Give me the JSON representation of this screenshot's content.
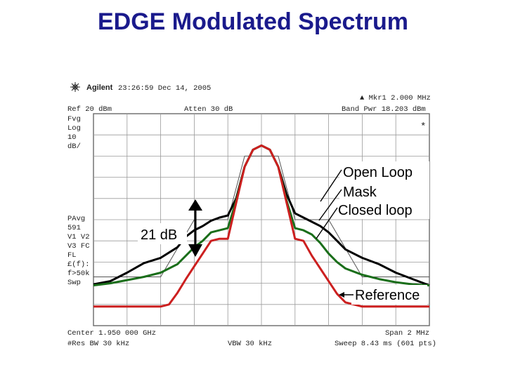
{
  "slide": {
    "title": "EDGE Modulated Spectrum"
  },
  "analyzer": {
    "brand": "Agilent",
    "timestamp": "23:26:59  Dec 14, 2005",
    "marker": "▲ Mkr1  2.000 MHz",
    "band_power": "Band Pwr  18.203 dBm",
    "ref_level": "Ref 20 dBm",
    "atten": "Atten 30 dB",
    "star": "*",
    "left_labels": [
      "Fvg",
      "Log",
      "10",
      "dB/"
    ],
    "left_labels_2": [
      "PAvg",
      "591",
      "V1  V2",
      "V3  FC",
      "  FL",
      "£(f):",
      "f>50k",
      "Swp"
    ],
    "center": "Center 1.950 000 GHz",
    "res_bw": "#Res BW 30 kHz",
    "vbw": "VBW 30 kHz",
    "span": "Span 2 MHz",
    "sweep": "Sweep 8.43 ms (601 pts)"
  },
  "annotations": {
    "open_loop": "Open Loop",
    "mask": "Mask",
    "closed_loop": "Closed loop",
    "delta": "21 dB",
    "reference": "Reference"
  },
  "colors": {
    "title": "#1a1a8c",
    "open_loop": "#000000",
    "closed_loop": "#1a6e1a",
    "reference": "#cc1f1f",
    "mask": "#555555",
    "grid": "#9a9a9a"
  },
  "chart_data": {
    "type": "line",
    "xlabel": "",
    "ylabel": "",
    "xlim": [
      -1,
      1
    ],
    "ylim": [
      -80,
      20
    ],
    "x_units": "MHz offset from center",
    "y_units": "dBm",
    "series": [
      {
        "name": "Open Loop",
        "color": "#000000",
        "points": [
          [
            -1.0,
            -60.5
          ],
          [
            -0.9,
            -59
          ],
          [
            -0.8,
            -55
          ],
          [
            -0.7,
            -50.5
          ],
          [
            -0.6,
            -48
          ],
          [
            -0.5,
            -43
          ],
          [
            -0.45,
            -38
          ],
          [
            -0.4,
            -35
          ],
          [
            -0.35,
            -33
          ],
          [
            -0.3,
            -30.5
          ],
          [
            -0.25,
            -29
          ],
          [
            -0.2,
            -28
          ],
          [
            -0.15,
            -20
          ],
          [
            -0.1,
            -5
          ],
          [
            -0.05,
            3
          ],
          [
            0.0,
            5
          ],
          [
            0.05,
            3
          ],
          [
            0.1,
            -5
          ],
          [
            0.15,
            -18
          ],
          [
            0.2,
            -27
          ],
          [
            0.25,
            -29
          ],
          [
            0.3,
            -31
          ],
          [
            0.35,
            -33
          ],
          [
            0.4,
            -36
          ],
          [
            0.45,
            -40
          ],
          [
            0.5,
            -44
          ],
          [
            0.6,
            -48
          ],
          [
            0.7,
            -51
          ],
          [
            0.8,
            -55
          ],
          [
            0.9,
            -58
          ],
          [
            1.0,
            -61
          ]
        ]
      },
      {
        "name": "Closed loop",
        "color": "#1a6e1a",
        "points": [
          [
            -1.0,
            -61
          ],
          [
            -0.9,
            -60
          ],
          [
            -0.8,
            -58.5
          ],
          [
            -0.7,
            -57
          ],
          [
            -0.6,
            -55
          ],
          [
            -0.5,
            -51
          ],
          [
            -0.45,
            -47
          ],
          [
            -0.4,
            -43
          ],
          [
            -0.35,
            -40
          ],
          [
            -0.3,
            -36
          ],
          [
            -0.25,
            -35
          ],
          [
            -0.2,
            -34
          ],
          [
            -0.15,
            -21
          ],
          [
            -0.1,
            -5
          ],
          [
            -0.05,
            3
          ],
          [
            0.0,
            5
          ],
          [
            0.05,
            3
          ],
          [
            0.1,
            -5
          ],
          [
            0.15,
            -21
          ],
          [
            0.2,
            -34
          ],
          [
            0.25,
            -35
          ],
          [
            0.3,
            -37
          ],
          [
            0.35,
            -41
          ],
          [
            0.4,
            -46
          ],
          [
            0.45,
            -50
          ],
          [
            0.5,
            -53
          ],
          [
            0.6,
            -56
          ],
          [
            0.7,
            -58
          ],
          [
            0.8,
            -59.5
          ],
          [
            0.9,
            -60.5
          ],
          [
            1.0,
            -61
          ]
        ]
      },
      {
        "name": "Reference",
        "color": "#cc1f1f",
        "points": [
          [
            -1.0,
            -71
          ],
          [
            -0.8,
            -71
          ],
          [
            -0.6,
            -71
          ],
          [
            -0.55,
            -70
          ],
          [
            -0.5,
            -64.5
          ],
          [
            -0.45,
            -58
          ],
          [
            -0.4,
            -52
          ],
          [
            -0.35,
            -46
          ],
          [
            -0.3,
            -40
          ],
          [
            -0.25,
            -39
          ],
          [
            -0.2,
            -39
          ],
          [
            -0.15,
            -22
          ],
          [
            -0.1,
            -5
          ],
          [
            -0.05,
            3
          ],
          [
            0.0,
            5
          ],
          [
            0.05,
            3
          ],
          [
            0.1,
            -5
          ],
          [
            0.15,
            -22
          ],
          [
            0.2,
            -39
          ],
          [
            0.25,
            -40
          ],
          [
            0.3,
            -47
          ],
          [
            0.35,
            -53
          ],
          [
            0.4,
            -59
          ],
          [
            0.45,
            -65
          ],
          [
            0.5,
            -69
          ],
          [
            0.6,
            -71
          ],
          [
            0.8,
            -71
          ],
          [
            1.0,
            -71
          ]
        ]
      },
      {
        "name": "Mask",
        "color": "#555555",
        "points": [
          [
            -1.0,
            -57
          ],
          [
            -0.6,
            -57
          ],
          [
            -0.4,
            -30
          ],
          [
            -0.2,
            -30
          ],
          [
            -0.1,
            0
          ],
          [
            0.1,
            0
          ],
          [
            0.2,
            -30
          ],
          [
            0.4,
            -30
          ],
          [
            0.6,
            -57
          ],
          [
            1.0,
            -57
          ]
        ]
      }
    ]
  }
}
